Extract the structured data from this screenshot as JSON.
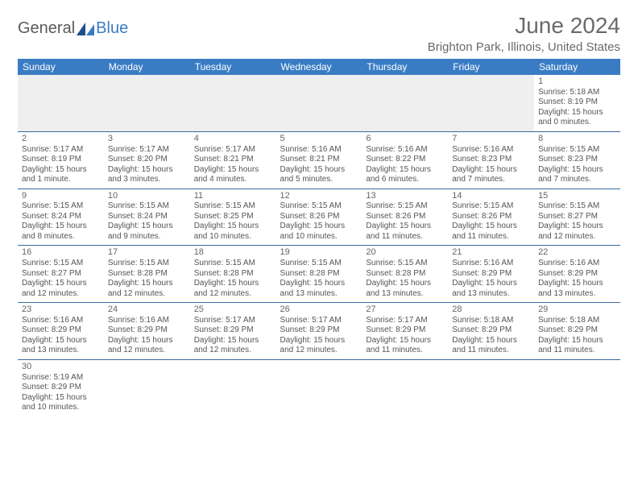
{
  "logo": {
    "text1": "General",
    "text2": "Blue"
  },
  "header": {
    "month_title": "June 2024",
    "location": "Brighton Park, Illinois, United States"
  },
  "colors": {
    "header_bg": "#3a7cc4",
    "header_fg": "#ffffff",
    "row_border": "#3a6aa0",
    "body_text": "#555555",
    "firstrow_bg": "#efefef"
  },
  "weekdays": [
    "Sunday",
    "Monday",
    "Tuesday",
    "Wednesday",
    "Thursday",
    "Friday",
    "Saturday"
  ],
  "days": {
    "1": {
      "sunrise": "5:18 AM",
      "sunset": "8:19 PM",
      "day_h": 15,
      "day_m": 0
    },
    "2": {
      "sunrise": "5:17 AM",
      "sunset": "8:19 PM",
      "day_h": 15,
      "day_m": 1
    },
    "3": {
      "sunrise": "5:17 AM",
      "sunset": "8:20 PM",
      "day_h": 15,
      "day_m": 3
    },
    "4": {
      "sunrise": "5:17 AM",
      "sunset": "8:21 PM",
      "day_h": 15,
      "day_m": 4
    },
    "5": {
      "sunrise": "5:16 AM",
      "sunset": "8:21 PM",
      "day_h": 15,
      "day_m": 5
    },
    "6": {
      "sunrise": "5:16 AM",
      "sunset": "8:22 PM",
      "day_h": 15,
      "day_m": 6
    },
    "7": {
      "sunrise": "5:16 AM",
      "sunset": "8:23 PM",
      "day_h": 15,
      "day_m": 7
    },
    "8": {
      "sunrise": "5:15 AM",
      "sunset": "8:23 PM",
      "day_h": 15,
      "day_m": 7
    },
    "9": {
      "sunrise": "5:15 AM",
      "sunset": "8:24 PM",
      "day_h": 15,
      "day_m": 8
    },
    "10": {
      "sunrise": "5:15 AM",
      "sunset": "8:24 PM",
      "day_h": 15,
      "day_m": 9
    },
    "11": {
      "sunrise": "5:15 AM",
      "sunset": "8:25 PM",
      "day_h": 15,
      "day_m": 10
    },
    "12": {
      "sunrise": "5:15 AM",
      "sunset": "8:26 PM",
      "day_h": 15,
      "day_m": 10
    },
    "13": {
      "sunrise": "5:15 AM",
      "sunset": "8:26 PM",
      "day_h": 15,
      "day_m": 11
    },
    "14": {
      "sunrise": "5:15 AM",
      "sunset": "8:26 PM",
      "day_h": 15,
      "day_m": 11
    },
    "15": {
      "sunrise": "5:15 AM",
      "sunset": "8:27 PM",
      "day_h": 15,
      "day_m": 12
    },
    "16": {
      "sunrise": "5:15 AM",
      "sunset": "8:27 PM",
      "day_h": 15,
      "day_m": 12
    },
    "17": {
      "sunrise": "5:15 AM",
      "sunset": "8:28 PM",
      "day_h": 15,
      "day_m": 12
    },
    "18": {
      "sunrise": "5:15 AM",
      "sunset": "8:28 PM",
      "day_h": 15,
      "day_m": 12
    },
    "19": {
      "sunrise": "5:15 AM",
      "sunset": "8:28 PM",
      "day_h": 15,
      "day_m": 13
    },
    "20": {
      "sunrise": "5:15 AM",
      "sunset": "8:28 PM",
      "day_h": 15,
      "day_m": 13
    },
    "21": {
      "sunrise": "5:16 AM",
      "sunset": "8:29 PM",
      "day_h": 15,
      "day_m": 13
    },
    "22": {
      "sunrise": "5:16 AM",
      "sunset": "8:29 PM",
      "day_h": 15,
      "day_m": 13
    },
    "23": {
      "sunrise": "5:16 AM",
      "sunset": "8:29 PM",
      "day_h": 15,
      "day_m": 13
    },
    "24": {
      "sunrise": "5:16 AM",
      "sunset": "8:29 PM",
      "day_h": 15,
      "day_m": 12
    },
    "25": {
      "sunrise": "5:17 AM",
      "sunset": "8:29 PM",
      "day_h": 15,
      "day_m": 12
    },
    "26": {
      "sunrise": "5:17 AM",
      "sunset": "8:29 PM",
      "day_h": 15,
      "day_m": 12
    },
    "27": {
      "sunrise": "5:17 AM",
      "sunset": "8:29 PM",
      "day_h": 15,
      "day_m": 11
    },
    "28": {
      "sunrise": "5:18 AM",
      "sunset": "8:29 PM",
      "day_h": 15,
      "day_m": 11
    },
    "29": {
      "sunrise": "5:18 AM",
      "sunset": "8:29 PM",
      "day_h": 15,
      "day_m": 11
    },
    "30": {
      "sunrise": "5:19 AM",
      "sunset": "8:29 PM",
      "day_h": 15,
      "day_m": 10
    }
  },
  "layout": {
    "first_weekday_index": 6,
    "num_days": 30,
    "columns": 7
  },
  "labels": {
    "sunrise": "Sunrise:",
    "sunset": "Sunset:",
    "daylight": "Daylight:",
    "hours": "hours",
    "and": "and",
    "minute_singular": "minute.",
    "minutes_plural": "minutes."
  }
}
